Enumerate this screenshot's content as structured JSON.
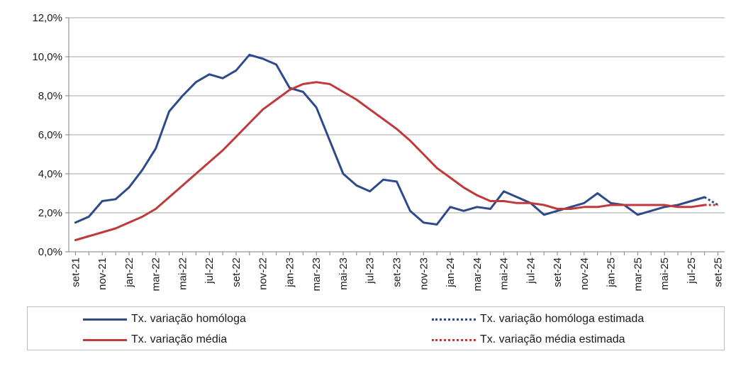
{
  "chart_data": {
    "type": "line",
    "x": [
      "set-21",
      "out-21",
      "nov-21",
      "dez-21",
      "jan-22",
      "fev-22",
      "mar-22",
      "abr-22",
      "mai-22",
      "jun-22",
      "jul-22",
      "ago-22",
      "set-22",
      "out-22",
      "nov-22",
      "dez-22",
      "jan-23",
      "fev-23",
      "mar-23",
      "abr-23",
      "mai-23",
      "jun-23",
      "jul-23",
      "ago-23",
      "set-23",
      "out-23",
      "nov-23",
      "dez-23",
      "jan-24",
      "fev-24",
      "mar-24",
      "abr-24",
      "mai-24",
      "jun-24",
      "jul-24",
      "ago-24",
      "set-24",
      "out-24",
      "nov-24",
      "dez-24",
      "jan-25",
      "fev-25",
      "mar-25",
      "abr-25",
      "mai-25",
      "jun-25",
      "jul-25",
      "ago-25",
      "set-25"
    ],
    "x_tick_labels": [
      "set-21",
      "nov-21",
      "jan-22",
      "mar-22",
      "mai-22",
      "jul-22",
      "set-22",
      "nov-22",
      "jan-23",
      "mar-23",
      "mai-23",
      "jul-23",
      "set-23",
      "nov-23",
      "jan-24",
      "mar-24",
      "mai-24",
      "jul-24",
      "set-24",
      "nov-24",
      "jan-25",
      "mar-25",
      "mai-25",
      "jul-25",
      "set-25"
    ],
    "ylim": [
      0,
      12
    ],
    "y_ticks": [
      0,
      2,
      4,
      6,
      8,
      10,
      12
    ],
    "y_tick_labels": [
      "0,0%",
      "2,0%",
      "4,0%",
      "6,0%",
      "8,0%",
      "10,0%",
      "12,0%"
    ],
    "grid": true,
    "title": "",
    "xlabel": "",
    "ylabel": "",
    "legend_position": "bottom",
    "series": [
      {
        "name": "Tx. variação homóloga",
        "color": "#2f4a8a",
        "style": "solid",
        "values": [
          1.5,
          1.8,
          2.6,
          2.7,
          3.3,
          4.2,
          5.3,
          7.2,
          8.0,
          8.7,
          9.1,
          8.9,
          9.3,
          10.1,
          9.9,
          9.6,
          8.4,
          8.2,
          7.4,
          5.7,
          4.0,
          3.4,
          3.1,
          3.7,
          3.6,
          2.1,
          1.5,
          1.4,
          2.3,
          2.1,
          2.3,
          2.2,
          3.1,
          2.8,
          2.5,
          1.9,
          2.1,
          2.3,
          2.5,
          3.0,
          2.5,
          2.4,
          1.9,
          2.1,
          2.3,
          2.4,
          2.6,
          2.8,
          null
        ]
      },
      {
        "name": "Tx. variação média",
        "color": "#c0393b",
        "style": "solid",
        "values": [
          0.6,
          0.8,
          1.0,
          1.2,
          1.5,
          1.8,
          2.2,
          2.8,
          3.4,
          4.0,
          4.6,
          5.2,
          5.9,
          6.6,
          7.3,
          7.8,
          8.3,
          8.6,
          8.7,
          8.6,
          8.2,
          7.8,
          7.3,
          6.8,
          6.3,
          5.7,
          5.0,
          4.3,
          3.8,
          3.3,
          2.9,
          2.6,
          2.6,
          2.5,
          2.5,
          2.4,
          2.2,
          2.2,
          2.3,
          2.3,
          2.4,
          2.4,
          2.4,
          2.4,
          2.4,
          2.3,
          2.3,
          2.4,
          null
        ]
      },
      {
        "name": "Tx. variação homóloga estimada",
        "color": "#2f4a8a",
        "style": "dotted",
        "values": [
          null,
          null,
          null,
          null,
          null,
          null,
          null,
          null,
          null,
          null,
          null,
          null,
          null,
          null,
          null,
          null,
          null,
          null,
          null,
          null,
          null,
          null,
          null,
          null,
          null,
          null,
          null,
          null,
          null,
          null,
          null,
          null,
          null,
          null,
          null,
          null,
          null,
          null,
          null,
          null,
          null,
          null,
          null,
          null,
          null,
          null,
          null,
          2.8,
          2.4
        ]
      },
      {
        "name": "Tx. variação média  estimada",
        "color": "#c0393b",
        "style": "dotted",
        "values": [
          null,
          null,
          null,
          null,
          null,
          null,
          null,
          null,
          null,
          null,
          null,
          null,
          null,
          null,
          null,
          null,
          null,
          null,
          null,
          null,
          null,
          null,
          null,
          null,
          null,
          null,
          null,
          null,
          null,
          null,
          null,
          null,
          null,
          null,
          null,
          null,
          null,
          null,
          null,
          null,
          null,
          null,
          null,
          null,
          null,
          null,
          null,
          2.4,
          2.4
        ]
      }
    ]
  }
}
